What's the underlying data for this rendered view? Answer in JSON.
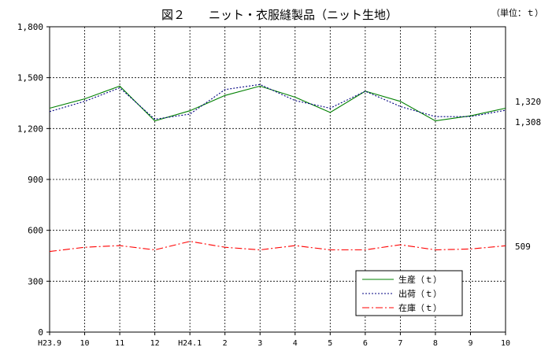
{
  "chart_data": {
    "type": "line",
    "title": "図２　　ニット・衣服縫製品（ニット生地）",
    "unit_label": "（単位：ｔ）",
    "categories": [
      "H23.9",
      "10",
      "11",
      "12",
      "H24.1",
      "2",
      "3",
      "4",
      "5",
      "6",
      "7",
      "8",
      "9",
      "10"
    ],
    "ylim": [
      0,
      1800
    ],
    "yticks": [
      0,
      300,
      600,
      900,
      1200,
      1500,
      1800
    ],
    "ytick_labels": [
      "0",
      "300",
      "600",
      "900",
      "1,200",
      "1,500",
      "1,800"
    ],
    "grid": true,
    "legend_position": "bottom-right",
    "series": [
      {
        "name": "生産（ｔ）",
        "color": "#008000",
        "dash": "solid",
        "values": [
          1320,
          1375,
          1450,
          1245,
          1305,
          1395,
          1450,
          1385,
          1295,
          1420,
          1360,
          1245,
          1275,
          1320
        ]
      },
      {
        "name": "出荷（ｔ）",
        "color": "#000080",
        "dash": "dotted",
        "values": [
          1300,
          1360,
          1440,
          1255,
          1285,
          1430,
          1460,
          1365,
          1320,
          1420,
          1330,
          1270,
          1270,
          1308
        ]
      },
      {
        "name": "在庫（ｔ）",
        "color": "#ff0000",
        "dash": "dashdot",
        "values": [
          475,
          500,
          510,
          485,
          535,
          500,
          485,
          510,
          485,
          485,
          515,
          485,
          490,
          509
        ]
      }
    ],
    "end_labels": [
      "1,320",
      "1,308",
      "509"
    ]
  }
}
